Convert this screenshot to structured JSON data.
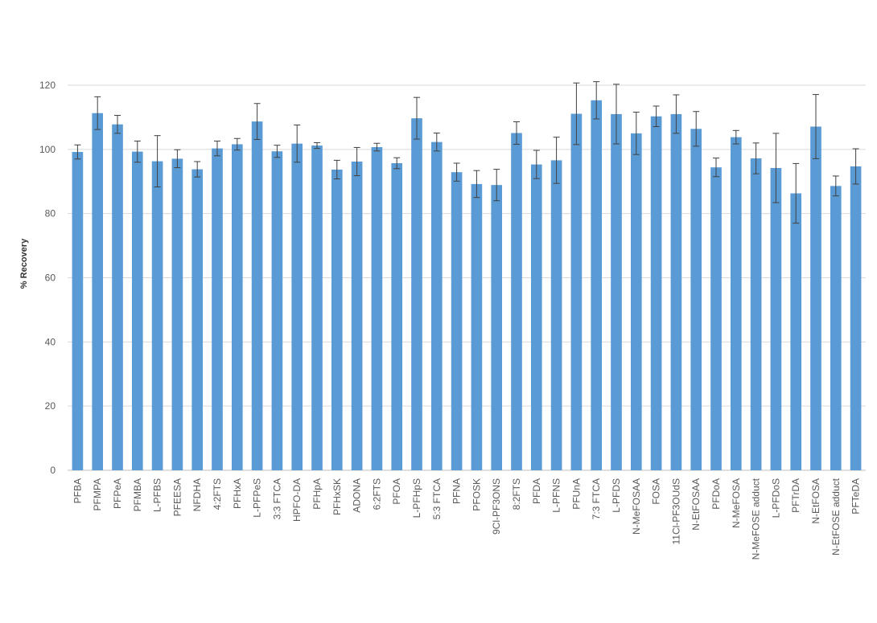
{
  "chart_data": {
    "type": "bar",
    "title": "",
    "xlabel": "",
    "ylabel": "% Recovery",
    "ylim": [
      0,
      120
    ],
    "yticks": [
      0,
      20,
      40,
      60,
      80,
      100,
      120
    ],
    "grid": true,
    "legend": "none",
    "bar_color": "#5b9bd5",
    "categories": [
      "PFBA",
      "PFMPA",
      "PFPeA",
      "PFMBA",
      "L-PFBS",
      "PFEESA",
      "NFDHA",
      "4:2FTS",
      "PFHxA",
      "L-PFPeS",
      "3:3 FTCA",
      "HPFO-DA",
      "PFHpA",
      "PFHxSK",
      "ADONA",
      "6:2FTS",
      "PFOA",
      "L-PFHpS",
      "5:3 FTCA",
      "PFNA",
      "PFOSK",
      "9Cl-PF3ONS",
      "8:2FTS",
      "PFDA",
      "L-PFNS",
      "PFUnA",
      "7:3 FTCA",
      "L-PFDS",
      "N-MeFOSAA",
      "FOSA",
      "11Cl-PF3OUdS",
      "N-EtFOSAA",
      "PFDoA",
      "N-MeFOSA",
      "N-MeFOSE adduct",
      "L-PFDoS",
      "PFTrDA",
      "N-EtFOSA",
      "N-EtFOSE adduct",
      "PFTeDA"
    ],
    "values": [
      99.2,
      111.3,
      107.8,
      99.3,
      96.3,
      97.1,
      93.8,
      100.3,
      101.6,
      108.7,
      99.4,
      101.8,
      101.2,
      93.7,
      96.2,
      100.7,
      95.7,
      109.7,
      102.3,
      92.9,
      89.2,
      88.9,
      105.1,
      95.3,
      96.6,
      111.1,
      115.3,
      111.0,
      105.0,
      110.3,
      111.0,
      106.4,
      94.4,
      103.8,
      97.2,
      94.2,
      86.3,
      107.1,
      88.6,
      94.7
    ],
    "error": [
      2.2,
      5.1,
      2.8,
      3.3,
      8.0,
      2.8,
      2.4,
      2.3,
      1.8,
      5.6,
      1.9,
      5.8,
      0.9,
      2.9,
      4.4,
      1.2,
      1.7,
      6.5,
      2.8,
      2.8,
      4.2,
      4.9,
      3.5,
      4.4,
      7.2,
      9.6,
      5.8,
      9.3,
      6.6,
      3.2,
      6.0,
      5.4,
      2.9,
      2.1,
      4.8,
      10.8,
      9.3,
      10.0,
      3.1,
      5.5
    ]
  }
}
